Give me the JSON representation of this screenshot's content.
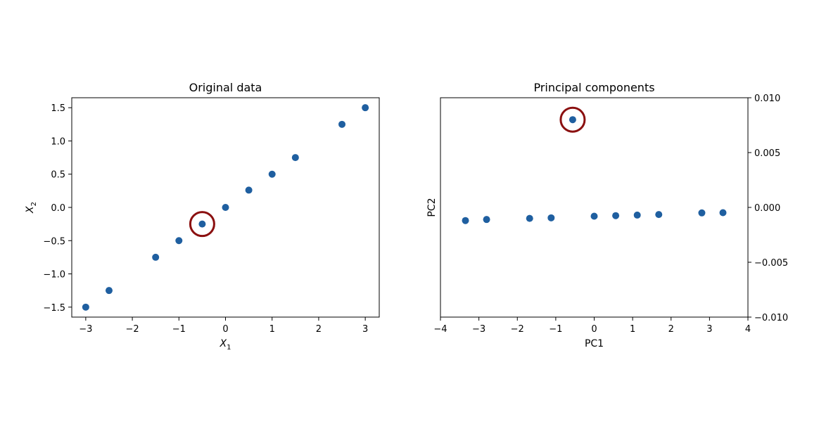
{
  "colors": {
    "point": "#1f5fa0",
    "highlight": "#8b1010",
    "axis": "#000000"
  },
  "chart_data": [
    {
      "type": "scatter",
      "title": "Original data",
      "xlabel": "X",
      "xlabel_sub": "1",
      "ylabel": "X",
      "ylabel_sub": "2",
      "xlim": [
        -3.3,
        3.3
      ],
      "ylim": [
        -1.65,
        1.65
      ],
      "xticks": [
        -3,
        -2,
        -1,
        0,
        1,
        2,
        3
      ],
      "xtick_labels": [
        "−3",
        "−2",
        "−1",
        "0",
        "1",
        "2",
        "3"
      ],
      "yticks": [
        -1.5,
        -1.0,
        -0.5,
        0.0,
        0.5,
        1.0,
        1.5
      ],
      "ytick_labels": [
        "−1.5",
        "−1.0",
        "−0.5",
        "0.0",
        "0.5",
        "1.0",
        "1.5"
      ],
      "y_axis_side": "left",
      "grid": false,
      "x": [
        -3,
        -2.5,
        -1.5,
        -1,
        -0.5,
        0,
        0.5,
        1,
        1.5,
        2.5,
        3
      ],
      "y": [
        -1.5,
        -1.25,
        -0.75,
        -0.5,
        -0.25,
        0,
        0.26,
        0.5,
        0.75,
        1.25,
        1.5
      ],
      "highlight_index": 4
    },
    {
      "type": "scatter",
      "title": "Principal components",
      "xlabel": "PC1",
      "xlabel_sub": "",
      "ylabel": "PC2",
      "ylabel_sub": "",
      "xlim": [
        -4,
        4
      ],
      "ylim": [
        -0.01,
        0.01
      ],
      "xticks": [
        -4,
        -3,
        -2,
        -1,
        0,
        1,
        2,
        3,
        4
      ],
      "xtick_labels": [
        "−4",
        "−3",
        "−2",
        "−1",
        "0",
        "1",
        "2",
        "3",
        "4"
      ],
      "yticks": [
        -0.01,
        -0.005,
        0.0,
        0.005,
        0.01
      ],
      "ytick_labels": [
        "−0.010",
        "−0.005",
        "0.000",
        "0.005",
        "0.010"
      ],
      "y_axis_side": "right",
      "grid": false,
      "x": [
        -3.35,
        -2.8,
        -1.68,
        -1.12,
        -0.56,
        0,
        0.56,
        1.12,
        1.68,
        2.8,
        3.35
      ],
      "y": [
        -0.0012,
        -0.0011,
        -0.001,
        -0.00095,
        0.008,
        -0.0008,
        -0.00075,
        -0.0007,
        -0.00065,
        -0.0005,
        -0.00048
      ],
      "highlight_index": 4
    }
  ]
}
